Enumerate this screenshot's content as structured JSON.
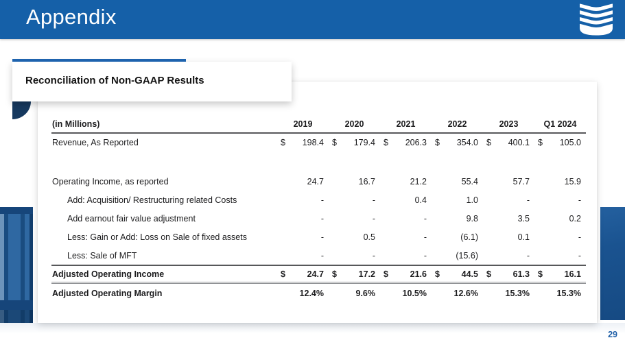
{
  "slide": {
    "title": "Appendix",
    "page_number": "29"
  },
  "section": {
    "title": "Reconciliation of Non-GAAP Results"
  },
  "logo": {
    "name": "stacked-u-logo"
  },
  "colors": {
    "header_blue": "#1560A8",
    "accent_blue": "#1E63AE",
    "navy": "#16395F",
    "page_number_blue": "#2060A8"
  },
  "table": {
    "unit_label": "(in Millions)",
    "columns": [
      "2019",
      "2020",
      "2021",
      "2022",
      "2023",
      "Q1 2024"
    ],
    "rows": [
      {
        "label": "Revenue, As Reported",
        "dollar": true,
        "values": [
          "198.4",
          "179.4",
          "206.3",
          "354.0",
          "400.1",
          "105.0"
        ],
        "spacer_after": true
      },
      {
        "label": "Operating Income, as reported",
        "values": [
          "24.7",
          "16.7",
          "21.2",
          "55.4",
          "57.7",
          "15.9"
        ]
      },
      {
        "label": "Add: Acquisition/ Restructuring related Costs",
        "indent": true,
        "values": [
          "-",
          "-",
          "0.4",
          "1.0",
          "-",
          "-"
        ]
      },
      {
        "label": "Add earnout fair value adjustment",
        "indent": true,
        "values": [
          "-",
          "-",
          "-",
          "9.8",
          "3.5",
          "0.2"
        ]
      },
      {
        "label": "Less: Gain or Add: Loss on Sale of fixed assets",
        "indent": true,
        "values": [
          "-",
          "0.5",
          "-",
          "(6.1)",
          "0.1",
          "-"
        ]
      },
      {
        "label": "Less: Sale of MFT",
        "indent": true,
        "values": [
          "-",
          "-",
          "-",
          "(15.6)",
          "-",
          "-"
        ],
        "underline": "single"
      },
      {
        "label": "Adjusted Operating Income",
        "bold": true,
        "dollar": true,
        "values": [
          "24.7",
          "17.2",
          "21.6",
          "44.5",
          "61.3",
          "16.1"
        ],
        "underline": "double"
      },
      {
        "label": "Adjusted Operating Margin",
        "bold": true,
        "values": [
          "12.4%",
          "9.6%",
          "10.5%",
          "12.6%",
          "15.3%",
          "15.3%"
        ]
      }
    ]
  }
}
